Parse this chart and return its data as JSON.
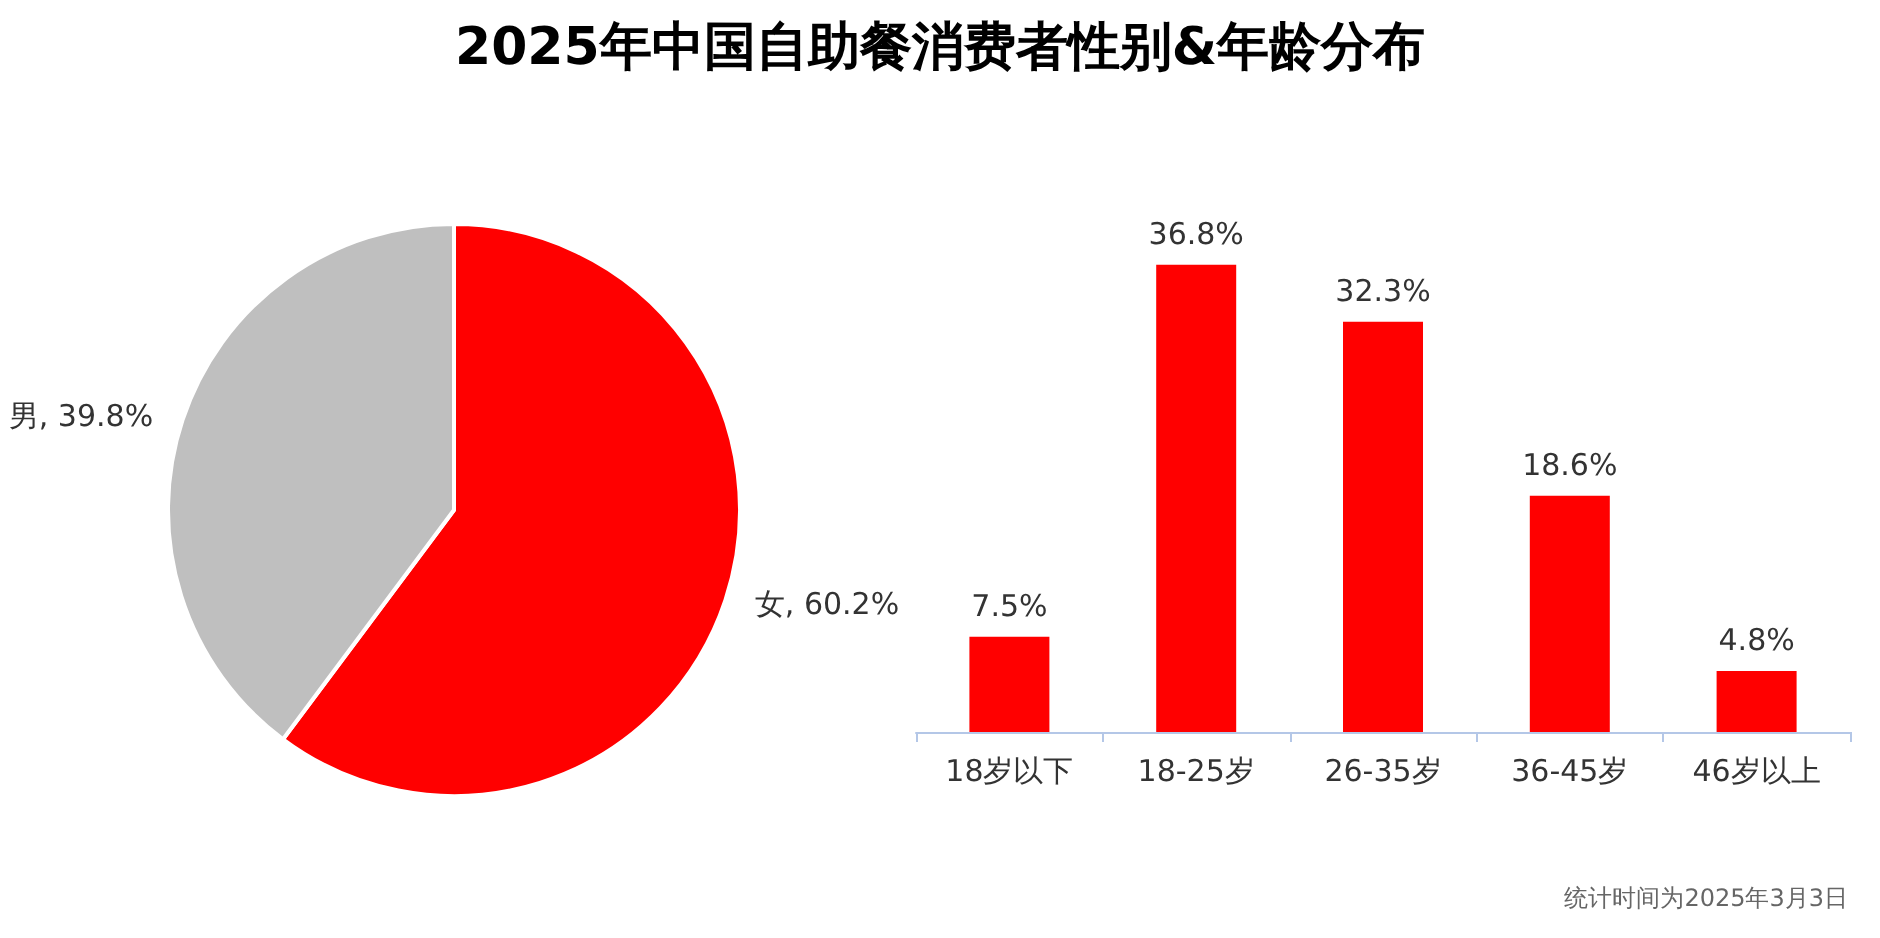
{
  "chart_data": [
    {
      "type": "pie",
      "title": "2025年中国自助餐消费者性别&年龄分布",
      "categories": [
        "女",
        "男"
      ],
      "values": [
        60.2,
        39.8
      ],
      "colors": [
        "#ff0000",
        "#bfbfbf"
      ],
      "value_labels": [
        "60.2%",
        "39.8%"
      ],
      "legend": false
    },
    {
      "type": "bar",
      "categories": [
        "18岁以下",
        "18-25岁",
        "26-35岁",
        "36-45岁",
        "46岁以上"
      ],
      "values": [
        7.5,
        36.8,
        32.3,
        18.6,
        4.8
      ],
      "color": "#ff0000",
      "value_labels": [
        "7.5%",
        "36.8%",
        "32.3%",
        "18.6%",
        "4.8%"
      ],
      "legend": false,
      "annotations": [
        "统计时间为2025年3月3日"
      ]
    }
  ]
}
